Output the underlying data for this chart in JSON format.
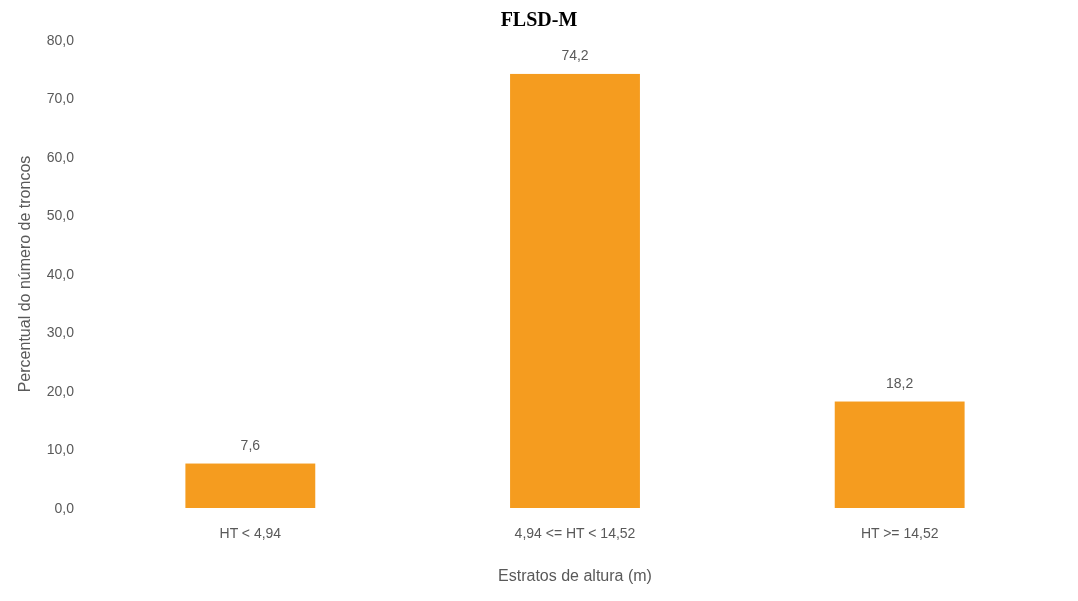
{
  "chart_data": {
    "type": "bar",
    "title": "FLSD-M",
    "xlabel": "Estratos de altura (m)",
    "ylabel": "Percentual do número de troncos",
    "categories": [
      "HT < 4,94",
      "4,94 <= HT < 14,52",
      "HT >= 14,52"
    ],
    "values": [
      7.6,
      74.2,
      18.2
    ],
    "color": "#f59c1f",
    "value_labels": [
      "7,6",
      "74,2",
      "18,2"
    ],
    "ylim": [
      0,
      80
    ],
    "yticks": [
      {
        "value": 0,
        "label": "0,0"
      },
      {
        "value": 10,
        "label": "10,0"
      },
      {
        "value": 20,
        "label": "20,0"
      },
      {
        "value": 30,
        "label": "30,0"
      },
      {
        "value": 40,
        "label": "40,0"
      },
      {
        "value": 50,
        "label": "50,0"
      },
      {
        "value": 60,
        "label": "60,0"
      },
      {
        "value": 70,
        "label": "70,0"
      },
      {
        "value": 80,
        "label": "80,0"
      }
    ],
    "grid": false
  }
}
